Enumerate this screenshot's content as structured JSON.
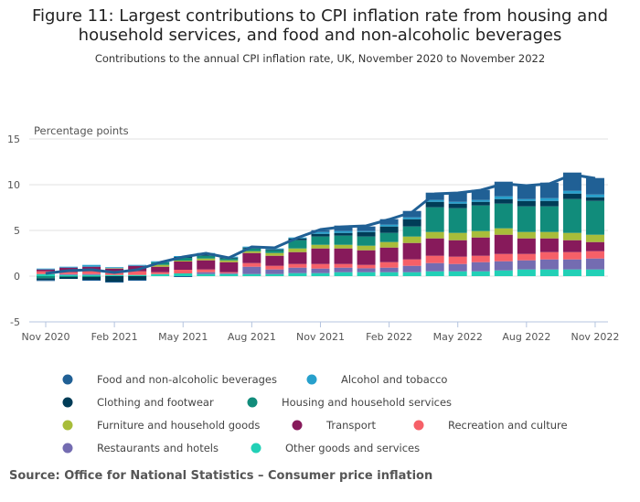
{
  "chart_data": {
    "type": "bar",
    "stacked": true,
    "title": "Figure 11: Largest contributions to CPI inflation rate from housing and household services, and food and non-alcoholic beverages",
    "subtitle": "Contributions to the annual CPI inflation rate, UK, November 2020 to November 2022",
    "ylabel": "Percentage points",
    "ylim": [
      -5,
      15
    ],
    "yticks": [
      15,
      10,
      5,
      0,
      -5
    ],
    "grid": true,
    "legend": "bottom",
    "categories": [
      "Nov 2020",
      "Dec 2020",
      "Jan 2021",
      "Feb 2021",
      "Mar 2021",
      "Apr 2021",
      "May 2021",
      "Jun 2021",
      "Jul 2021",
      "Aug 2021",
      "Sep 2021",
      "Oct 2021",
      "Nov 2021",
      "Dec 2021",
      "Jan 2022",
      "Feb 2022",
      "Mar 2022",
      "Apr 2022",
      "May 2022",
      "Jun 2022",
      "Jul 2022",
      "Aug 2022",
      "Sep 2022",
      "Oct 2022",
      "Nov 2022"
    ],
    "xtick_labels": [
      "Nov 2020",
      "Feb 2021",
      "May 2021",
      "Aug 2021",
      "Nov 2021",
      "Feb 2022",
      "May 2022",
      "Aug 2022",
      "Nov 2022"
    ],
    "series": [
      {
        "name": "Other goods and services",
        "color": "#22d0b6",
        "values": [
          0.23,
          0.13,
          0.13,
          0.13,
          0.13,
          0.23,
          0.3,
          0.23,
          0.23,
          0.23,
          0.23,
          0.33,
          0.33,
          0.43,
          0.43,
          0.43,
          0.43,
          0.53,
          0.53,
          0.53,
          0.63,
          0.73,
          0.73,
          0.73,
          0.73
        ]
      },
      {
        "name": "Restaurants and hotels",
        "color": "#746cb1",
        "values": [
          0.0,
          0.1,
          0.1,
          0.0,
          0.0,
          0.0,
          0.0,
          0.2,
          0.1,
          0.8,
          0.5,
          0.6,
          0.5,
          0.5,
          0.43,
          0.5,
          0.7,
          0.9,
          0.8,
          1.0,
          1.0,
          1.0,
          1.1,
          1.1,
          1.2
        ]
      },
      {
        "name": "Recreation and culture",
        "color": "#f66068",
        "values": [
          0.3,
          0.2,
          0.4,
          0.3,
          0.4,
          0.2,
          0.4,
          0.3,
          0.1,
          0.4,
          0.4,
          0.4,
          0.5,
          0.4,
          0.37,
          0.6,
          0.7,
          0.8,
          0.8,
          0.7,
          0.8,
          0.7,
          0.8,
          0.8,
          0.8
        ]
      },
      {
        "name": "Transport",
        "color": "#871a5b",
        "values": [
          0.2,
          0.5,
          0.4,
          0.4,
          0.6,
          0.6,
          0.9,
          1.0,
          1.1,
          1.1,
          1.1,
          1.3,
          1.7,
          1.7,
          1.6,
          1.6,
          1.8,
          1.9,
          1.8,
          2.0,
          2.1,
          1.7,
          1.5,
          1.3,
          1.0
        ]
      },
      {
        "name": "Furniture and household goods",
        "color": "#a8bd3a",
        "values": [
          0.0,
          0.0,
          0.0,
          0.05,
          0.0,
          0.2,
          0.1,
          0.2,
          0.2,
          0.2,
          0.3,
          0.4,
          0.4,
          0.4,
          0.5,
          0.6,
          0.7,
          0.7,
          0.8,
          0.7,
          0.7,
          0.7,
          0.7,
          0.8,
          0.8
        ]
      },
      {
        "name": "Housing and household services",
        "color": "#118c7b",
        "values": [
          -0.23,
          -0.1,
          -0.1,
          0.0,
          0.0,
          0.3,
          0.3,
          0.3,
          0.2,
          0.3,
          0.3,
          0.9,
          0.9,
          1.0,
          1.0,
          1.0,
          1.1,
          2.7,
          2.7,
          2.8,
          2.7,
          2.8,
          2.8,
          3.7,
          3.7
        ]
      },
      {
        "name": "Clothing and footwear",
        "color": "#003c57",
        "values": [
          -0.2,
          -0.2,
          -0.3,
          -0.6,
          -0.4,
          0.0,
          0.1,
          0.2,
          0.1,
          0.1,
          0.1,
          0.2,
          0.3,
          0.3,
          0.5,
          0.7,
          0.8,
          0.6,
          0.5,
          0.4,
          0.5,
          0.6,
          0.6,
          0.6,
          0.4
        ]
      },
      {
        "name": "Alcohol and tobacco",
        "color": "#27a0cc",
        "values": [
          0.1,
          0.1,
          0.2,
          0.1,
          0.1,
          0.1,
          0.1,
          0.1,
          0.1,
          0.1,
          0.1,
          0.1,
          0.2,
          0.2,
          0.1,
          0.2,
          0.2,
          0.2,
          0.2,
          0.2,
          0.3,
          0.2,
          0.3,
          0.3,
          0.3
        ]
      },
      {
        "name": "Food and non-alcoholic beverages",
        "color": "#206095",
        "values": [
          -0.1,
          0.0,
          -0.1,
          -0.1,
          -0.1,
          0.0,
          -0.1,
          0.0,
          0.0,
          0.0,
          0.0,
          0.0,
          0.2,
          0.6,
          0.5,
          0.6,
          0.7,
          0.8,
          1.0,
          1.1,
          1.6,
          1.5,
          1.7,
          2.0,
          1.8
        ]
      }
    ],
    "line": {
      "name": "CPI",
      "color": "#206095",
      "values": [
        0.3,
        0.6,
        0.7,
        0.4,
        0.7,
        1.5,
        2.1,
        2.5,
        2.0,
        3.2,
        3.1,
        4.2,
        5.1,
        5.4,
        5.5,
        6.2,
        7.0,
        9.0,
        9.1,
        9.4,
        10.1,
        9.9,
        10.1,
        11.1,
        10.7
      ]
    },
    "legend_order": [
      "Food and non-alcoholic beverages",
      "Alcohol and tobacco",
      "Clothing and footwear",
      "Housing and household services",
      "Furniture and household goods",
      "Transport",
      "Recreation and culture",
      "Restaurants and hotels",
      "Other goods and services"
    ]
  },
  "source": "Source: Office for National Statistics – Consumer price inflation"
}
